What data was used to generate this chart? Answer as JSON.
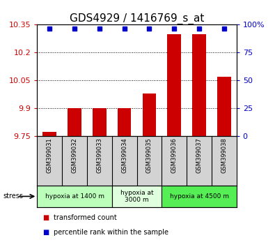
{
  "title": "GDS4929 / 1416769_s_at",
  "samples": [
    "GSM399031",
    "GSM399032",
    "GSM399033",
    "GSM399034",
    "GSM399035",
    "GSM399036",
    "GSM399037",
    "GSM399038"
  ],
  "bar_values": [
    9.77,
    9.9,
    9.9,
    9.9,
    9.98,
    10.3,
    10.3,
    10.07
  ],
  "ylim": [
    9.75,
    10.35
  ],
  "yticks_left": [
    9.75,
    9.9,
    10.05,
    10.2,
    10.35
  ],
  "yticks_right": [
    0,
    25,
    50,
    75,
    100
  ],
  "bar_color": "#cc0000",
  "percentile_color": "#0000cc",
  "background_color": "#ffffff",
  "sample_bg_color": "#d3d3d3",
  "groups": [
    {
      "label": "hypoxia at 1400 m",
      "start": 0,
      "end": 3,
      "color": "#bbffbb"
    },
    {
      "label": "hypoxia at\n3000 m",
      "start": 3,
      "end": 5,
      "color": "#dfffdf"
    },
    {
      "label": "hypoxia at 4500 m",
      "start": 5,
      "end": 8,
      "color": "#55ee55"
    }
  ],
  "legend_items": [
    {
      "color": "#cc0000",
      "label": "transformed count"
    },
    {
      "color": "#0000cc",
      "label": "percentile rank within the sample"
    }
  ],
  "ylabel_left_color": "#cc0000",
  "ylabel_right_color": "#0000cc",
  "title_fontsize": 11,
  "tick_fontsize": 8,
  "bar_width": 0.55
}
